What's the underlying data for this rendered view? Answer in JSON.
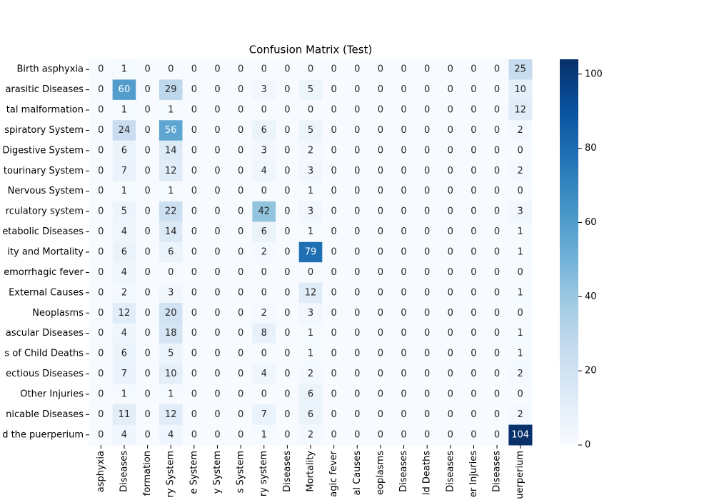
{
  "chart_data": {
    "type": "heatmap",
    "title": "Confusion Matrix (Test)",
    "y_categories": [
      "Birth asphyxia",
      "arasitic Diseases",
      "tal malformation",
      "spiratory System",
      "Digestive System",
      "tourinary System",
      "Nervous System",
      "rculatory system",
      "etabolic Diseases",
      "ity and Mortality",
      "emorrhagic fever",
      "External Causes",
      "Neoplasms",
      "ascular Diseases",
      "s of Child Deaths",
      "ectious Diseases",
      "Other Injuries",
      "nicable Diseases",
      "d the puerperium"
    ],
    "x_categories": [
      "asphyxia",
      "Diseases",
      "formation",
      "ry System",
      "e System",
      "y System",
      "s System",
      "ry system",
      "Diseases",
      "Mortality",
      "agic fever",
      "al Causes",
      "eoplasms",
      "Diseases",
      "ld Deaths",
      "Diseases",
      "er Injuries",
      "Diseases",
      "uerperium"
    ],
    "z": [
      [
        0,
        1,
        0,
        0,
        0,
        0,
        0,
        0,
        0,
        0,
        0,
        0,
        0,
        0,
        0,
        0,
        0,
        0,
        25
      ],
      [
        0,
        60,
        0,
        29,
        0,
        0,
        0,
        3,
        0,
        5,
        0,
        0,
        0,
        0,
        0,
        0,
        0,
        0,
        10
      ],
      [
        0,
        1,
        0,
        1,
        0,
        0,
        0,
        0,
        0,
        0,
        0,
        0,
        0,
        0,
        0,
        0,
        0,
        0,
        12
      ],
      [
        0,
        24,
        0,
        56,
        0,
        0,
        0,
        6,
        0,
        5,
        0,
        0,
        0,
        0,
        0,
        0,
        0,
        0,
        2
      ],
      [
        0,
        6,
        0,
        14,
        0,
        0,
        0,
        3,
        0,
        2,
        0,
        0,
        0,
        0,
        0,
        0,
        0,
        0,
        0
      ],
      [
        0,
        7,
        0,
        12,
        0,
        0,
        0,
        4,
        0,
        3,
        0,
        0,
        0,
        0,
        0,
        0,
        0,
        0,
        2
      ],
      [
        0,
        1,
        0,
        1,
        0,
        0,
        0,
        0,
        0,
        1,
        0,
        0,
        0,
        0,
        0,
        0,
        0,
        0,
        0
      ],
      [
        0,
        5,
        0,
        22,
        0,
        0,
        0,
        42,
        0,
        3,
        0,
        0,
        0,
        0,
        0,
        0,
        0,
        0,
        3
      ],
      [
        0,
        4,
        0,
        14,
        0,
        0,
        0,
        6,
        0,
        1,
        0,
        0,
        0,
        0,
        0,
        0,
        0,
        0,
        1
      ],
      [
        0,
        6,
        0,
        6,
        0,
        0,
        0,
        2,
        0,
        79,
        0,
        0,
        0,
        0,
        0,
        0,
        0,
        0,
        1
      ],
      [
        0,
        4,
        0,
        0,
        0,
        0,
        0,
        0,
        0,
        0,
        0,
        0,
        0,
        0,
        0,
        0,
        0,
        0,
        0
      ],
      [
        0,
        2,
        0,
        3,
        0,
        0,
        0,
        0,
        0,
        12,
        0,
        0,
        0,
        0,
        0,
        0,
        0,
        0,
        1
      ],
      [
        0,
        12,
        0,
        20,
        0,
        0,
        0,
        2,
        0,
        3,
        0,
        0,
        0,
        0,
        0,
        0,
        0,
        0,
        0
      ],
      [
        0,
        4,
        0,
        18,
        0,
        0,
        0,
        8,
        0,
        1,
        0,
        0,
        0,
        0,
        0,
        0,
        0,
        0,
        1
      ],
      [
        0,
        6,
        0,
        5,
        0,
        0,
        0,
        0,
        0,
        1,
        0,
        0,
        0,
        0,
        0,
        0,
        0,
        0,
        1
      ],
      [
        0,
        7,
        0,
        10,
        0,
        0,
        0,
        4,
        0,
        2,
        0,
        0,
        0,
        0,
        0,
        0,
        0,
        0,
        2
      ],
      [
        0,
        1,
        0,
        1,
        0,
        0,
        0,
        0,
        0,
        6,
        0,
        0,
        0,
        0,
        0,
        0,
        0,
        0,
        0
      ],
      [
        0,
        11,
        0,
        12,
        0,
        0,
        0,
        7,
        0,
        6,
        0,
        0,
        0,
        0,
        0,
        0,
        0,
        0,
        2
      ],
      [
        0,
        4,
        0,
        4,
        0,
        0,
        0,
        1,
        0,
        2,
        0,
        0,
        0,
        0,
        0,
        0,
        0,
        0,
        104
      ]
    ],
    "zlim": [
      0,
      104
    ],
    "zticks": [
      0,
      20,
      40,
      60,
      80,
      100
    ],
    "colormap": [
      "#f7fbff",
      "#deebf7",
      "#c6dbef",
      "#9ecae1",
      "#6baed6",
      "#4292c6",
      "#2171b5",
      "#08519c",
      "#08306b"
    ]
  }
}
